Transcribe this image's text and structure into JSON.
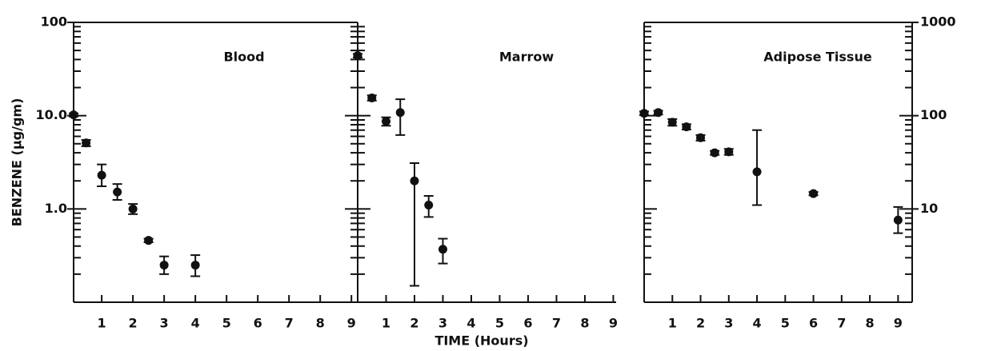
{
  "chart_data": [
    {
      "type": "scatter",
      "title": "Blood",
      "ylabel": "BENZENE (µg/gm)",
      "log_y": true,
      "xlim": [
        0.1,
        9.2
      ],
      "xticks": [
        1,
        2,
        3,
        4,
        5,
        6,
        7,
        8,
        9
      ],
      "ylim": [
        0.1,
        100
      ],
      "yticks": [
        {
          "value": 1,
          "label": "1.0"
        },
        {
          "value": 10,
          "label": "10.0"
        },
        100
      ],
      "y_axis_side": "left",
      "color": "#111111",
      "x": [
        0.1,
        0.5,
        1,
        1.5,
        2,
        2.5,
        3,
        4
      ],
      "values": [
        10.2,
        5.1,
        2.3,
        1.52,
        1.0,
        0.46,
        0.25,
        0.25
      ],
      "error_low": [
        9.8,
        4.7,
        1.75,
        1.25,
        0.88,
        0.44,
        0.2,
        0.19
      ],
      "error_high": [
        10.6,
        5.5,
        3.0,
        1.85,
        1.13,
        0.48,
        0.31,
        0.32
      ]
    },
    {
      "type": "scatter",
      "title": "Marrow",
      "xlabel": "TIME (Hours)",
      "log_y": true,
      "xlim": [
        0,
        9.1
      ],
      "xticks": [
        1,
        2,
        3,
        4,
        5,
        6,
        7,
        8,
        9
      ],
      "ylim": [
        0.1,
        100
      ],
      "color": "#111111",
      "x": [
        0,
        0.5,
        1,
        1.5,
        2,
        2.5,
        3
      ],
      "values": [
        44,
        15.5,
        8.7,
        10.8,
        2.0,
        1.1,
        0.37
      ],
      "error_low": [
        42,
        14.5,
        7.8,
        6.2,
        0.15,
        0.82,
        0.26
      ],
      "error_high": [
        46,
        16.5,
        9.6,
        15,
        3.1,
        1.38,
        0.48
      ]
    },
    {
      "type": "scatter",
      "title": "Adipose Tissue",
      "log_y": true,
      "xlim": [
        0,
        9.5
      ],
      "xticks": [
        1,
        2,
        3,
        4,
        5,
        6,
        7,
        8,
        9
      ],
      "ylim": [
        1,
        1000
      ],
      "yticks": [
        10,
        100,
        1000
      ],
      "y_axis_side": "right",
      "color": "#111111",
      "x": [
        0,
        0.5,
        1,
        1.5,
        2,
        2.5,
        3,
        4,
        6,
        9
      ],
      "values": [
        106,
        108,
        85,
        76,
        58,
        40,
        41,
        25,
        14.6,
        7.6
      ],
      "error_low": [
        101,
        103,
        78,
        71,
        54,
        38,
        38,
        11,
        14,
        5.5
      ],
      "error_high": [
        111,
        113,
        92,
        81,
        62,
        42,
        44,
        70,
        15.2,
        10.5
      ]
    }
  ]
}
